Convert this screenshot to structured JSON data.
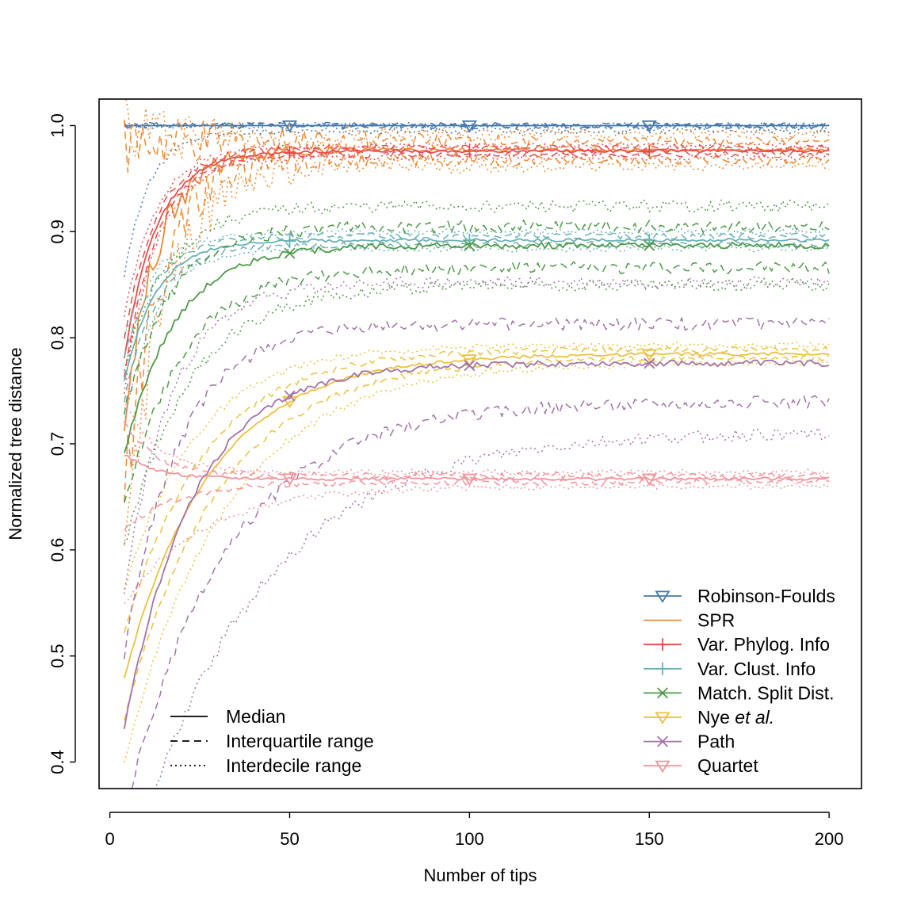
{
  "chart_data": {
    "type": "line",
    "title": "",
    "xlabel": "Number of tips",
    "ylabel": "Normalized tree distance",
    "xlim": [
      -3,
      209
    ],
    "ylim": [
      0.375,
      1.025
    ],
    "x_ticks": [
      0,
      50,
      100,
      150,
      200
    ],
    "y_ticks": [
      0.4,
      0.5,
      0.6,
      0.7,
      0.8,
      0.9,
      1.0
    ],
    "x_tick_labels": [
      "0",
      "50",
      "100",
      "150",
      "200"
    ],
    "y_tick_labels": [
      "0.4",
      "0.5",
      "0.6",
      "0.7",
      "0.8",
      "0.9",
      "1.0"
    ],
    "x_range": [
      4,
      200
    ],
    "marker_x": [
      50,
      100,
      150
    ],
    "series": [
      {
        "name": "Robinson-Foulds",
        "color": "#4477aa",
        "marker": "triangle-down",
        "median": {
          "start": 1.0,
          "end": 1.0,
          "k": 1
        },
        "q25": {
          "start": 1.0,
          "end": 1.0,
          "k": 1
        },
        "q75": {
          "start": 1.0,
          "end": 1.0,
          "k": 1
        },
        "d10": {
          "start": 0.86,
          "end": 0.995,
          "k": 7
        },
        "d90": {
          "start": 1.0,
          "end": 1.0,
          "k": 1
        }
      },
      {
        "name": "SPR",
        "color": "#ee8a33",
        "marker": "none",
        "median": {
          "start": 0.72,
          "end": 0.977,
          "k": 9
        },
        "q25": {
          "start": 0.65,
          "end": 0.968,
          "k": 10
        },
        "q75": {
          "start": 0.98,
          "end": 0.985,
          "k": 9
        },
        "d10": {
          "start": 0.6,
          "end": 0.962,
          "k": 11
        },
        "d90": {
          "start": 1.0,
          "end": 0.992,
          "k": 9
        }
      },
      {
        "name": "Var. Phylog. Info",
        "color": "#e94b4b",
        "marker": "plus",
        "median": {
          "start": 0.78,
          "end": 0.976,
          "k": 9
        },
        "q25": {
          "start": 0.76,
          "end": 0.973,
          "k": 9
        },
        "q75": {
          "start": 0.8,
          "end": 0.979,
          "k": 9
        },
        "d10": {
          "start": 0.75,
          "end": 0.97,
          "k": 9
        },
        "d90": {
          "start": 0.82,
          "end": 0.981,
          "k": 9
        }
      },
      {
        "name": "Var. Clust. Info",
        "color": "#6ab1b4",
        "marker": "plus",
        "median": {
          "start": 0.76,
          "end": 0.892,
          "k": 9
        },
        "q25": {
          "start": 0.74,
          "end": 0.888,
          "k": 9
        },
        "q75": {
          "start": 0.78,
          "end": 0.896,
          "k": 9
        },
        "d10": {
          "start": 0.72,
          "end": 0.884,
          "k": 9
        },
        "d90": {
          "start": 0.8,
          "end": 0.9,
          "k": 9
        }
      },
      {
        "name": "Match. Split Dist.",
        "color": "#4f9a48",
        "marker": "x",
        "median": {
          "start": 0.69,
          "end": 0.887,
          "k": 14
        },
        "q25": {
          "start": 0.64,
          "end": 0.866,
          "k": 16
        },
        "q75": {
          "start": 0.73,
          "end": 0.905,
          "k": 13
        },
        "d10": {
          "start": 0.6,
          "end": 0.85,
          "k": 18
        },
        "d90": {
          "start": 0.77,
          "end": 0.924,
          "k": 12
        }
      },
      {
        "name": "Nye et al.",
        "color": "#ecc13d",
        "marker": "triangle-down",
        "median": {
          "start": 0.48,
          "end": 0.785,
          "k": 24
        },
        "q25": {
          "start": 0.44,
          "end": 0.781,
          "k": 26
        },
        "q75": {
          "start": 0.52,
          "end": 0.789,
          "k": 22
        },
        "d10": {
          "start": 0.4,
          "end": 0.777,
          "k": 28
        },
        "d90": {
          "start": 0.56,
          "end": 0.793,
          "k": 20
        }
      },
      {
        "name": "Path",
        "color": "#a373a6",
        "marker": "x",
        "median": {
          "start": 0.43,
          "end": 0.776,
          "k": 19
        },
        "q25": {
          "start": 0.35,
          "end": 0.74,
          "k": 28
        },
        "q75": {
          "start": 0.5,
          "end": 0.813,
          "k": 15
        },
        "d10": {
          "start": 0.28,
          "end": 0.711,
          "k": 35
        },
        "d90": {
          "start": 0.56,
          "end": 0.852,
          "k": 13
        }
      },
      {
        "name": "Quartet",
        "color": "#f4939a",
        "marker": "triangle-down",
        "median": {
          "start": 0.69,
          "end": 0.667,
          "k": 9
        },
        "q25": {
          "start": 0.62,
          "end": 0.664,
          "k": 15
        },
        "q75": {
          "start": 0.72,
          "end": 0.67,
          "k": 9
        },
        "d10": {
          "start": 0.55,
          "end": 0.66,
          "k": 22
        },
        "d90": {
          "start": 0.74,
          "end": 0.673,
          "k": 9
        }
      }
    ],
    "legend_series": [
      {
        "label": "Robinson-Foulds",
        "color": "#4477aa",
        "marker": "triangle-down"
      },
      {
        "label": "SPR",
        "color": "#ee8a33",
        "marker": "none"
      },
      {
        "label": "Var. Phylog. Info",
        "color": "#e94b4b",
        "marker": "plus"
      },
      {
        "label": "Var. Clust. Info",
        "color": "#6ab1b4",
        "marker": "plus"
      },
      {
        "label": "Match. Split Dist.",
        "color": "#4f9a48",
        "marker": "x"
      },
      {
        "label_main": "Nye ",
        "label_italic": "et al.",
        "color": "#ecc13d",
        "marker": "triangle-down"
      },
      {
        "label": "Path",
        "color": "#a373a6",
        "marker": "x"
      },
      {
        "label": "Quartet",
        "color": "#f4939a",
        "marker": "triangle-down"
      }
    ],
    "legend_linetypes": [
      {
        "label": "Median",
        "style": "solid"
      },
      {
        "label": "Interquartile range",
        "style": "dashed"
      },
      {
        "label": "Interdecile range",
        "style": "dotted"
      }
    ],
    "legend_placement": [
      "bottom-right",
      "bottom-left"
    ]
  }
}
